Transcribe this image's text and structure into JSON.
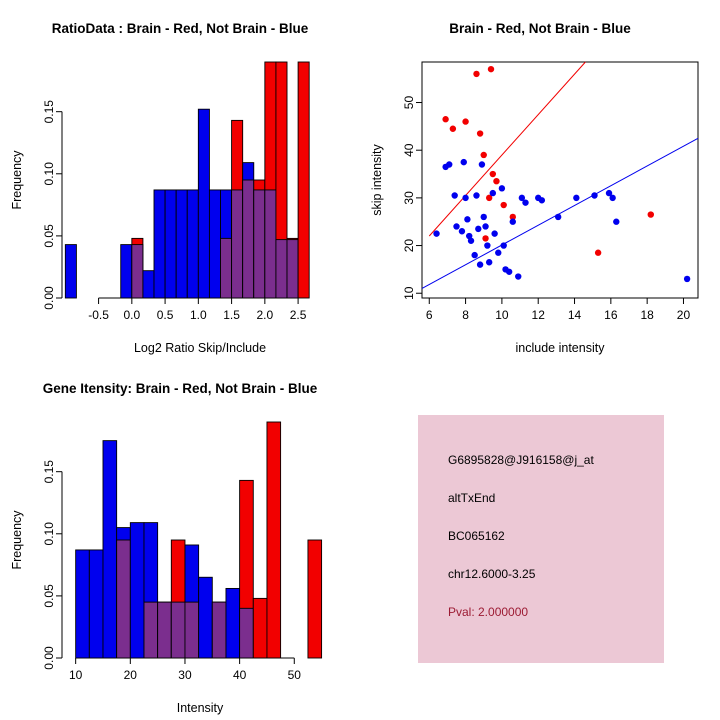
{
  "page": {
    "background": "#FFFFFF"
  },
  "chart_data": [
    {
      "type": "bar",
      "panel": "top-left",
      "title": "RatioData : Brain - Red, Not Brain - Blue",
      "xlabel": "Log2 Ratio Skip/Include",
      "ylabel": "Frequency",
      "xlim": [
        -1.05,
        3.1
      ],
      "ylim": [
        0,
        0.19
      ],
      "xticks": [
        -0.5,
        0,
        0.5,
        1,
        1.5,
        2,
        2.5
      ],
      "xtick_labels": [
        "-0.5",
        "0.0",
        "0.5",
        "1.0",
        "1.5",
        "2.0",
        "2.5"
      ],
      "yticks": [
        0,
        0.05,
        0.1,
        0.15
      ],
      "ytick_labels": [
        "0.00",
        "0.05",
        "0.10",
        "0.15"
      ],
      "binwidth": 0.1667,
      "overlap_color": "#7B2E8E",
      "grid": false,
      "series": [
        {
          "name": "Not Brain",
          "color": "#0000EE",
          "bars": [
            [
              -1.0,
              0.043
            ],
            [
              -0.1667,
              0.043
            ],
            [
              0,
              0.043
            ],
            [
              0.1667,
              0.022
            ],
            [
              0.3333,
              0.087
            ],
            [
              0.5,
              0.087
            ],
            [
              0.6667,
              0.087
            ],
            [
              0.8333,
              0.087
            ],
            [
              1.0,
              0.152
            ],
            [
              1.1667,
              0.087
            ],
            [
              1.3333,
              0.087
            ],
            [
              1.5,
              0.087
            ],
            [
              1.6667,
              0.109
            ],
            [
              1.8333,
              0.087
            ],
            [
              2.0,
              0.087
            ],
            [
              2.1667,
              0.047
            ],
            [
              2.3333,
              0.047
            ]
          ]
        },
        {
          "name": "Brain",
          "color": "#F20000",
          "bars": [
            [
              0,
              0.048
            ],
            [
              1.3333,
              0.048
            ],
            [
              1.5,
              0.143
            ],
            [
              1.6667,
              0.095
            ],
            [
              1.8333,
              0.095
            ],
            [
              2.0,
              0.19
            ],
            [
              2.1667,
              0.19
            ],
            [
              2.3333,
              0.048
            ],
            [
              2.5,
              0.19
            ]
          ]
        }
      ]
    },
    {
      "type": "scatter",
      "panel": "top-right",
      "title": "Brain - Red, Not Brain - Blue",
      "xlabel": "include intensity",
      "ylabel": "skip intensity",
      "xlim": [
        5.6,
        20.8
      ],
      "ylim": [
        9,
        58.5
      ],
      "xticks": [
        6,
        8,
        10,
        12,
        14,
        16,
        18,
        20
      ],
      "xtick_labels": [
        "6",
        "8",
        "10",
        "12",
        "14",
        "16",
        "18",
        "20"
      ],
      "yticks": [
        10,
        20,
        30,
        40,
        50
      ],
      "ytick_labels": [
        "10",
        "20",
        "30",
        "40",
        "50"
      ],
      "box": true,
      "grid": false,
      "series": [
        {
          "name": "Brain",
          "color": "#F20000",
          "points": [
            [
              6.9,
              46.5
            ],
            [
              7.3,
              44.5
            ],
            [
              8.0,
              46
            ],
            [
              8.6,
              56
            ],
            [
              9.4,
              57
            ],
            [
              8.8,
              43.5
            ],
            [
              9.0,
              39
            ],
            [
              9.5,
              35
            ],
            [
              9.7,
              33.5
            ],
            [
              9.3,
              30
            ],
            [
              10.1,
              28.5
            ],
            [
              10.6,
              26
            ],
            [
              9.1,
              21.5
            ],
            [
              15.3,
              18.5
            ],
            [
              18.2,
              26.5
            ]
          ]
        },
        {
          "name": "Not Brain",
          "color": "#0000EE",
          "points": [
            [
              6.4,
              22.5
            ],
            [
              6.9,
              36.5
            ],
            [
              7.1,
              37
            ],
            [
              7.4,
              30.5
            ],
            [
              7.5,
              24
            ],
            [
              7.8,
              23
            ],
            [
              7.9,
              37.5
            ],
            [
              8.0,
              30
            ],
            [
              8.1,
              25.5
            ],
            [
              8.2,
              22
            ],
            [
              8.3,
              21
            ],
            [
              8.5,
              18
            ],
            [
              8.6,
              30.5
            ],
            [
              8.7,
              23.5
            ],
            [
              8.8,
              16
            ],
            [
              8.9,
              37
            ],
            [
              9.0,
              26
            ],
            [
              9.1,
              24
            ],
            [
              9.2,
              20
            ],
            [
              9.3,
              16.5
            ],
            [
              9.5,
              31
            ],
            [
              9.6,
              22.5
            ],
            [
              9.8,
              18.5
            ],
            [
              10.0,
              32
            ],
            [
              10.1,
              20
            ],
            [
              10.2,
              15
            ],
            [
              10.4,
              14.5
            ],
            [
              10.6,
              25
            ],
            [
              10.9,
              13.5
            ],
            [
              11.1,
              30
            ],
            [
              11.3,
              29
            ],
            [
              12.0,
              30
            ],
            [
              12.2,
              29.5
            ],
            [
              13.1,
              26
            ],
            [
              14.1,
              30
            ],
            [
              15.1,
              30.5
            ],
            [
              15.9,
              31
            ],
            [
              16.1,
              30
            ],
            [
              16.3,
              25
            ],
            [
              20.2,
              13
            ]
          ]
        }
      ],
      "lines": [
        {
          "name": "brain-fit-line",
          "color": "#F20000",
          "from": [
            6,
            22
          ],
          "to": [
            14.6,
            58.5
          ]
        },
        {
          "name": "notbrain-fit-line",
          "color": "#0000EE",
          "from": [
            5.6,
            11
          ],
          "to": [
            20.8,
            42.5
          ]
        }
      ]
    },
    {
      "type": "bar",
      "panel": "bottom-left",
      "title": "Gene Itensity: Brain - Red, Not Brain - Blue",
      "xlabel": "Intensity",
      "ylabel": "Frequency",
      "xlim": [
        7.5,
        58
      ],
      "ylim": [
        0,
        0.19
      ],
      "xticks": [
        10,
        20,
        30,
        40,
        50
      ],
      "xtick_labels": [
        "10",
        "20",
        "30",
        "40",
        "50"
      ],
      "yticks": [
        0,
        0.05,
        0.1,
        0.15
      ],
      "ytick_labels": [
        "0.00",
        "0.05",
        "0.10",
        "0.15"
      ],
      "binwidth": 2.5,
      "overlap_color": "#7B2E8E",
      "grid": false,
      "series": [
        {
          "name": "Not Brain",
          "color": "#0000EE",
          "bars": [
            [
              10,
              0.087
            ],
            [
              12.5,
              0.087
            ],
            [
              15,
              0.175
            ],
            [
              17.5,
              0.105
            ],
            [
              20,
              0.109
            ],
            [
              22.5,
              0.109
            ],
            [
              25,
              0.045
            ],
            [
              27.5,
              0.045
            ],
            [
              30,
              0.091
            ],
            [
              32.5,
              0.065
            ],
            [
              35,
              0.045
            ],
            [
              37.5,
              0.056
            ],
            [
              40,
              0.04
            ]
          ]
        },
        {
          "name": "Brain",
          "color": "#F20000",
          "bars": [
            [
              17.5,
              0.095
            ],
            [
              22.5,
              0.045
            ],
            [
              25,
              0.045
            ],
            [
              27.5,
              0.095
            ],
            [
              30,
              0.045
            ],
            [
              35,
              0.045
            ],
            [
              40,
              0.143
            ],
            [
              42.5,
              0.048
            ],
            [
              45,
              0.19
            ],
            [
              52.5,
              0.095
            ]
          ]
        }
      ]
    }
  ],
  "info_panel": {
    "background": "#ECC8D5",
    "lines": [
      {
        "text": "G6895828@J916158@j_at",
        "color": "#000000"
      },
      {
        "text": "altTxEnd",
        "color": "#000000"
      },
      {
        "text": "BC065162",
        "color": "#000000"
      },
      {
        "text": "chr12.6000-3.25",
        "color": "#000000"
      },
      {
        "text": "Pval: 2.000000",
        "color": "#9C1B33"
      }
    ]
  }
}
